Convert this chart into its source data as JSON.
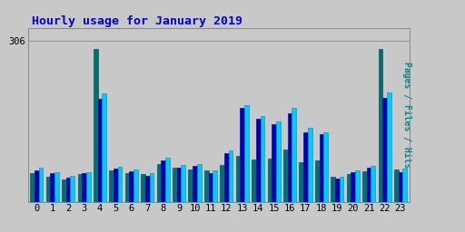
{
  "title": "Hourly usage for January 2019",
  "ylabel": "Pages / Files / Hits",
  "hours": [
    0,
    1,
    2,
    3,
    4,
    5,
    6,
    7,
    8,
    9,
    10,
    11,
    12,
    13,
    14,
    15,
    16,
    17,
    18,
    19,
    20,
    21,
    22,
    23
  ],
  "pages": [
    55,
    48,
    42,
    52,
    290,
    60,
    55,
    52,
    72,
    65,
    62,
    60,
    70,
    88,
    80,
    82,
    100,
    75,
    78,
    48,
    52,
    58,
    290,
    62
  ],
  "files": [
    60,
    54,
    46,
    54,
    195,
    63,
    58,
    50,
    78,
    65,
    68,
    55,
    92,
    178,
    158,
    148,
    168,
    132,
    128,
    44,
    56,
    64,
    198,
    56
  ],
  "hits": [
    65,
    57,
    50,
    57,
    205,
    67,
    62,
    55,
    83,
    70,
    72,
    60,
    97,
    183,
    163,
    153,
    178,
    140,
    132,
    48,
    60,
    68,
    208,
    63
  ],
  "pages_color": "#007070",
  "files_color": "#0000bb",
  "hits_color": "#00ccff",
  "bg_color": "#c8c8c8",
  "plot_bg_color": "#c8c8c8",
  "title_color": "#0000cc",
  "ylabel_color": "#008888",
  "grid_color": "#aaaaaa",
  "ylim": [
    0,
    330
  ],
  "ytick_val": 306,
  "ytick_label": "306",
  "bar_width": 0.27,
  "title_fontsize": 9.5,
  "ylabel_fontsize": 7,
  "tick_fontsize": 7.5
}
